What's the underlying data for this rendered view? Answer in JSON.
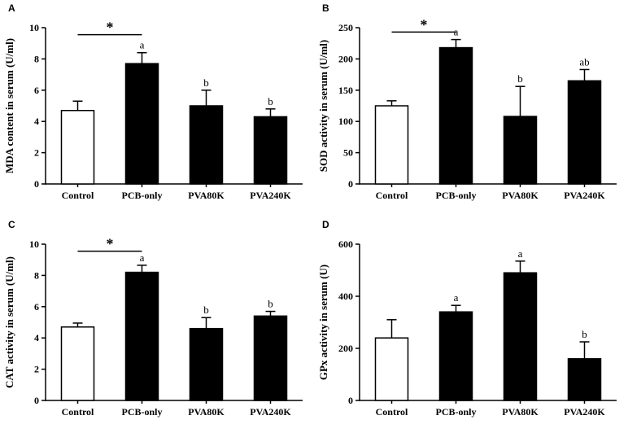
{
  "figure": {
    "background": "#ffffff",
    "panel_letters": [
      "A",
      "B",
      "C",
      "D"
    ]
  },
  "chart_data": [
    {
      "type": "bar",
      "panel": "A",
      "title": "",
      "xlabel": "",
      "ylabel": "MDA content in serum (U/ml)",
      "categories": [
        "Control",
        "PCB-only",
        "PVA80K",
        "PVA240K"
      ],
      "values": [
        4.7,
        7.7,
        5.0,
        4.3
      ],
      "errors": [
        0.6,
        0.7,
        1.0,
        0.5
      ],
      "letters": [
        "",
        "a",
        "b",
        "b"
      ],
      "ylim": [
        0,
        10
      ],
      "ytick_step": 2,
      "bar_colors": [
        "#ffffff",
        "#000000",
        "#000000",
        "#000000"
      ],
      "sig": {
        "from": 0,
        "to": 1,
        "y": 9.55,
        "label": "*"
      },
      "grid": false,
      "legend": "none"
    },
    {
      "type": "bar",
      "panel": "B",
      "title": "",
      "xlabel": "",
      "ylabel": "SOD activity in serum (U/ml)",
      "categories": [
        "Control",
        "PCB-only",
        "PVA80K",
        "PVA240K"
      ],
      "values": [
        125,
        218,
        108,
        165
      ],
      "errors": [
        8,
        13,
        48,
        18
      ],
      "letters": [
        "",
        "a",
        "b",
        "ab"
      ],
      "ylim": [
        0,
        250
      ],
      "ytick_step": 50,
      "bar_colors": [
        "#ffffff",
        "#000000",
        "#000000",
        "#000000"
      ],
      "sig": {
        "from": 0,
        "to": 1,
        "y": 243,
        "label": "*"
      },
      "grid": false,
      "legend": "none"
    },
    {
      "type": "bar",
      "panel": "C",
      "title": "",
      "xlabel": "",
      "ylabel": "CAT activity in serum (U/ml)",
      "categories": [
        "Control",
        "PCB-only",
        "PVA80K",
        "PVA240K"
      ],
      "values": [
        4.7,
        8.2,
        4.6,
        5.4
      ],
      "errors": [
        0.25,
        0.45,
        0.7,
        0.3
      ],
      "letters": [
        "",
        "a",
        "b",
        "b"
      ],
      "ylim": [
        0,
        10
      ],
      "ytick_step": 2,
      "bar_colors": [
        "#ffffff",
        "#000000",
        "#000000",
        "#000000"
      ],
      "sig": {
        "from": 0,
        "to": 1,
        "y": 9.55,
        "label": "*"
      },
      "grid": false,
      "legend": "none"
    },
    {
      "type": "bar",
      "panel": "D",
      "title": "",
      "xlabel": "",
      "ylabel": "GPx activity in serum (U)",
      "categories": [
        "Control",
        "PCB-only",
        "PVA80K",
        "PVA240K"
      ],
      "values": [
        240,
        340,
        490,
        160
      ],
      "errors": [
        70,
        25,
        45,
        65
      ],
      "letters": [
        "",
        "a",
        "a",
        "b"
      ],
      "ylim": [
        0,
        600
      ],
      "ytick_step": 200,
      "bar_colors": [
        "#ffffff",
        "#000000",
        "#000000",
        "#000000"
      ],
      "sig": null,
      "grid": false,
      "legend": "none"
    }
  ]
}
